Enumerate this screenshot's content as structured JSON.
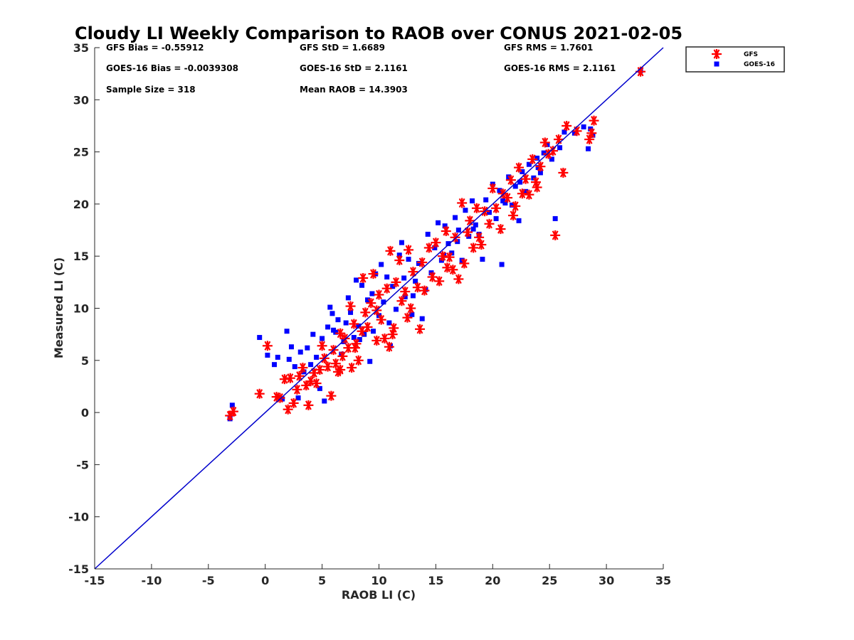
{
  "chart_data": {
    "type": "scatter",
    "title": "Cloudy LI Weekly Comparison to RAOB over CONUS 2021-02-05",
    "xlabel": "RAOB LI (C)",
    "ylabel": "Measured LI (C)",
    "xlim": [
      -15,
      35
    ],
    "ylim": [
      -15,
      35
    ],
    "xticks": [
      -15,
      -10,
      -5,
      0,
      5,
      10,
      15,
      20,
      25,
      30,
      35
    ],
    "yticks": [
      -15,
      -10,
      -5,
      0,
      5,
      10,
      15,
      20,
      25,
      30,
      35
    ],
    "grid": false,
    "legend_position": "outside-top-right",
    "reference_line": {
      "x": [
        -15,
        35
      ],
      "y": [
        -15,
        35
      ],
      "color": "#0000cc"
    },
    "stats": {
      "gfs_bias": "GFS Bias = -0.55912",
      "gfs_std": "GFS StD = 1.6689",
      "gfs_rms": "GFS RMS = 1.7601",
      "goes_bias": "GOES-16 Bias = -0.0039308",
      "goes_std": "GOES-16 StD = 2.1161",
      "goes_rms": "GOES-16 RMS = 2.1161",
      "sample_size": "Sample Size = 318",
      "mean_raob": "Mean RAOB = 14.3903"
    },
    "series": [
      {
        "name": "GFS",
        "marker": "asterisk",
        "color": "#ff0000",
        "points": [
          [
            -3.1,
            -0.3
          ],
          [
            -2.8,
            0.1
          ],
          [
            -0.5,
            1.8
          ],
          [
            0.2,
            6.4
          ],
          [
            1.0,
            1.5
          ],
          [
            1.3,
            1.4
          ],
          [
            1.7,
            3.2
          ],
          [
            2.0,
            0.3
          ],
          [
            2.2,
            3.3
          ],
          [
            2.5,
            0.9
          ],
          [
            2.8,
            2.2
          ],
          [
            3.0,
            3.5
          ],
          [
            3.3,
            4.3
          ],
          [
            3.6,
            2.6
          ],
          [
            3.8,
            0.7
          ],
          [
            4.0,
            3.0
          ],
          [
            4.3,
            3.8
          ],
          [
            4.5,
            2.8
          ],
          [
            4.8,
            4.1
          ],
          [
            5.0,
            6.4
          ],
          [
            5.2,
            5.2
          ],
          [
            5.5,
            4.4
          ],
          [
            5.8,
            1.6
          ],
          [
            6.0,
            6.0
          ],
          [
            6.2,
            4.7
          ],
          [
            6.4,
            3.9
          ],
          [
            6.6,
            7.6
          ],
          [
            6.8,
            5.4
          ],
          [
            7.0,
            7.1
          ],
          [
            7.3,
            6.2
          ],
          [
            7.5,
            10.2
          ],
          [
            7.6,
            4.3
          ],
          [
            7.8,
            8.5
          ],
          [
            8.0,
            6.6
          ],
          [
            8.2,
            5.0
          ],
          [
            8.5,
            7.8
          ],
          [
            8.6,
            12.9
          ],
          [
            8.8,
            9.6
          ],
          [
            9.0,
            8.2
          ],
          [
            9.3,
            10.5
          ],
          [
            9.5,
            13.3
          ],
          [
            9.8,
            9.8
          ],
          [
            10.0,
            11.3
          ],
          [
            10.2,
            8.9
          ],
          [
            10.5,
            7.1
          ],
          [
            10.7,
            11.9
          ],
          [
            10.9,
            6.3
          ],
          [
            11.0,
            15.5
          ],
          [
            11.3,
            8.1
          ],
          [
            11.5,
            12.5
          ],
          [
            11.8,
            14.6
          ],
          [
            12.0,
            10.7
          ],
          [
            12.3,
            11.6
          ],
          [
            12.6,
            15.6
          ],
          [
            12.8,
            10.0
          ],
          [
            13.0,
            13.5
          ],
          [
            13.4,
            12.0
          ],
          [
            13.6,
            8.0
          ],
          [
            13.8,
            14.4
          ],
          [
            14.0,
            11.7
          ],
          [
            14.4,
            15.8
          ],
          [
            14.7,
            13.0
          ],
          [
            15.0,
            16.3
          ],
          [
            15.3,
            12.6
          ],
          [
            15.6,
            15.0
          ],
          [
            15.9,
            17.4
          ],
          [
            16.2,
            14.9
          ],
          [
            16.5,
            13.7
          ],
          [
            16.7,
            16.8
          ],
          [
            17.0,
            12.8
          ],
          [
            17.3,
            20.1
          ],
          [
            17.5,
            14.3
          ],
          [
            17.8,
            17.3
          ],
          [
            18.0,
            18.4
          ],
          [
            18.3,
            15.8
          ],
          [
            18.6,
            19.6
          ],
          [
            19.0,
            16.1
          ],
          [
            19.3,
            19.3
          ],
          [
            19.7,
            18.1
          ],
          [
            20.0,
            21.5
          ],
          [
            20.3,
            19.6
          ],
          [
            20.7,
            17.6
          ],
          [
            20.9,
            21.0
          ],
          [
            21.3,
            20.6
          ],
          [
            21.6,
            22.3
          ],
          [
            22.0,
            19.8
          ],
          [
            22.3,
            23.5
          ],
          [
            22.6,
            21.0
          ],
          [
            22.9,
            22.4
          ],
          [
            23.2,
            20.9
          ],
          [
            23.5,
            24.3
          ],
          [
            23.8,
            22.1
          ],
          [
            24.2,
            23.6
          ],
          [
            24.6,
            25.9
          ],
          [
            24.9,
            24.8
          ],
          [
            25.3,
            25.1
          ],
          [
            25.5,
            17.0
          ],
          [
            25.8,
            26.2
          ],
          [
            26.2,
            23.0
          ],
          [
            26.5,
            27.5
          ],
          [
            27.4,
            27.0
          ],
          [
            28.5,
            26.2
          ],
          [
            28.7,
            26.8
          ],
          [
            28.9,
            28.0
          ],
          [
            33.0,
            32.7
          ],
          [
            11.2,
            7.5
          ],
          [
            9.8,
            6.9
          ],
          [
            7.9,
            6.2
          ],
          [
            6.6,
            4.1
          ],
          [
            12.5,
            9.1
          ],
          [
            16.0,
            13.9
          ],
          [
            18.8,
            16.8
          ],
          [
            21.8,
            18.9
          ],
          [
            23.9,
            21.6
          ]
        ]
      },
      {
        "name": "GOES-16",
        "marker": "square",
        "color": "#0000ff",
        "points": [
          [
            -3.1,
            -0.6
          ],
          [
            -2.9,
            0.7
          ],
          [
            -0.5,
            7.2
          ],
          [
            0.2,
            5.5
          ],
          [
            0.8,
            4.6
          ],
          [
            1.1,
            5.3
          ],
          [
            1.5,
            1.3
          ],
          [
            1.9,
            7.8
          ],
          [
            2.1,
            5.1
          ],
          [
            2.3,
            6.3
          ],
          [
            2.6,
            4.4
          ],
          [
            2.9,
            1.4
          ],
          [
            3.1,
            5.8
          ],
          [
            3.4,
            3.9
          ],
          [
            3.7,
            6.2
          ],
          [
            4.0,
            4.6
          ],
          [
            4.2,
            7.5
          ],
          [
            4.5,
            5.3
          ],
          [
            4.8,
            2.3
          ],
          [
            5.0,
            7.1
          ],
          [
            5.2,
            1.1
          ],
          [
            5.5,
            8.2
          ],
          [
            5.7,
            10.1
          ],
          [
            5.9,
            9.5
          ],
          [
            6.2,
            7.7
          ],
          [
            6.4,
            8.9
          ],
          [
            6.7,
            5.6
          ],
          [
            6.9,
            6.8
          ],
          [
            7.1,
            8.6
          ],
          [
            7.3,
            11.0
          ],
          [
            7.5,
            9.6
          ],
          [
            7.8,
            7.2
          ],
          [
            8.0,
            12.7
          ],
          [
            8.2,
            8.3
          ],
          [
            8.5,
            12.2
          ],
          [
            8.7,
            7.5
          ],
          [
            9.0,
            10.8
          ],
          [
            9.2,
            4.9
          ],
          [
            9.4,
            11.4
          ],
          [
            9.7,
            13.3
          ],
          [
            10.0,
            9.3
          ],
          [
            10.2,
            14.2
          ],
          [
            10.4,
            10.6
          ],
          [
            10.7,
            13.0
          ],
          [
            11.0,
            6.4
          ],
          [
            11.2,
            12.1
          ],
          [
            11.5,
            9.9
          ],
          [
            11.8,
            15.1
          ],
          [
            12.0,
            16.3
          ],
          [
            12.3,
            11.1
          ],
          [
            12.6,
            14.7
          ],
          [
            12.9,
            9.4
          ],
          [
            13.2,
            12.6
          ],
          [
            13.5,
            14.3
          ],
          [
            13.8,
            9.0
          ],
          [
            14.1,
            11.8
          ],
          [
            14.3,
            17.1
          ],
          [
            14.6,
            13.4
          ],
          [
            14.9,
            15.8
          ],
          [
            15.2,
            18.2
          ],
          [
            15.5,
            14.6
          ],
          [
            15.8,
            17.9
          ],
          [
            16.1,
            16.2
          ],
          [
            16.4,
            15.3
          ],
          [
            16.7,
            18.7
          ],
          [
            17.0,
            17.5
          ],
          [
            17.3,
            14.6
          ],
          [
            17.6,
            19.4
          ],
          [
            17.9,
            16.9
          ],
          [
            18.2,
            20.3
          ],
          [
            18.5,
            18.0
          ],
          [
            18.8,
            17.1
          ],
          [
            19.1,
            14.7
          ],
          [
            19.4,
            20.4
          ],
          [
            19.7,
            19.2
          ],
          [
            20.0,
            21.9
          ],
          [
            20.3,
            18.6
          ],
          [
            20.6,
            21.3
          ],
          [
            20.8,
            14.2
          ],
          [
            21.1,
            20.1
          ],
          [
            21.4,
            22.6
          ],
          [
            21.7,
            19.9
          ],
          [
            22.0,
            21.7
          ],
          [
            22.3,
            18.4
          ],
          [
            22.6,
            23.1
          ],
          [
            22.9,
            21.2
          ],
          [
            23.2,
            23.8
          ],
          [
            23.6,
            22.5
          ],
          [
            23.9,
            24.4
          ],
          [
            24.2,
            23.0
          ],
          [
            24.5,
            24.9
          ],
          [
            24.8,
            25.7
          ],
          [
            25.2,
            24.3
          ],
          [
            25.5,
            18.6
          ],
          [
            25.9,
            25.4
          ],
          [
            26.3,
            26.9
          ],
          [
            27.2,
            26.8
          ],
          [
            28.0,
            27.4
          ],
          [
            28.4,
            25.3
          ],
          [
            28.6,
            27.2
          ],
          [
            28.8,
            26.6
          ],
          [
            33.0,
            32.8
          ],
          [
            10.9,
            8.6
          ],
          [
            9.5,
            7.8
          ],
          [
            8.3,
            7.0
          ],
          [
            6.0,
            7.9
          ],
          [
            13.0,
            11.2
          ],
          [
            15.7,
            15.1
          ],
          [
            18.3,
            17.6
          ],
          [
            20.9,
            20.3
          ],
          [
            22.4,
            22.1
          ],
          [
            24.0,
            23.5
          ],
          [
            16.9,
            16.4
          ],
          [
            12.2,
            12.9
          ]
        ]
      }
    ]
  }
}
